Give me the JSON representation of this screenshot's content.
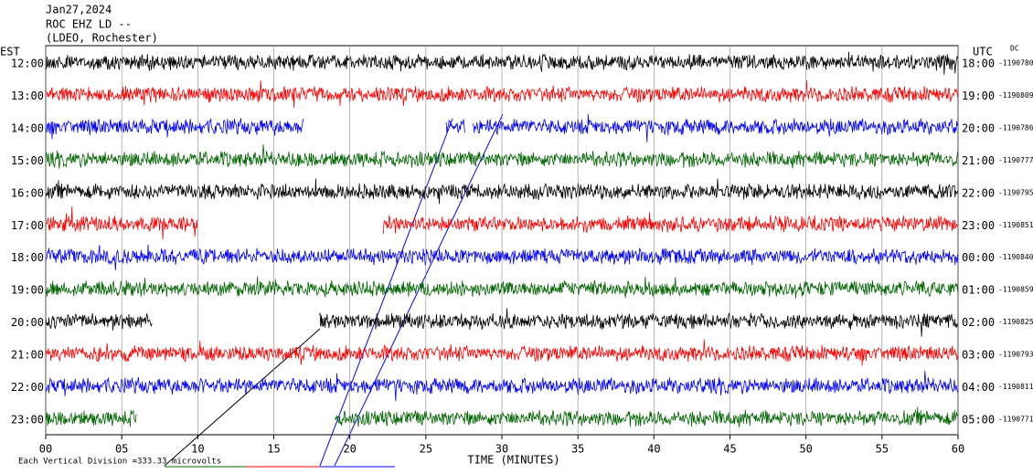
{
  "header": {
    "date": "Jan27,2024",
    "station": "ROC EHZ LD --",
    "network": "(LDEO, Rochester)"
  },
  "left_axis_title": "EST",
  "right_axis_title": "UTC",
  "dc_title": "DC",
  "x_axis_title": "TIME (MINUTES)",
  "scale_note": "Each Vertical Division =",
  "scale_value": "333.33 microvolts",
  "xlim": [
    0,
    60
  ],
  "xticks": [
    {
      "value": 0,
      "label": "00"
    },
    {
      "value": 5,
      "label": "05"
    },
    10,
    15,
    20,
    25,
    30,
    35,
    40,
    45,
    50,
    55,
    60
  ],
  "grid": true,
  "rows": [
    {
      "est": "12:00",
      "utc": "18:00",
      "dc": "-1190780",
      "color": "#000000",
      "segments": [
        [
          0,
          60
        ]
      ]
    },
    {
      "est": "13:00",
      "utc": "19:00",
      "dc": "-1190809",
      "color": "#ff0000",
      "segments": [
        [
          0,
          60
        ]
      ]
    },
    {
      "est": "14:00",
      "utc": "20:00",
      "dc": "-1190786",
      "color": "#0000ff",
      "segments": [
        [
          0,
          17
        ],
        [
          26.3,
          27.6
        ],
        [
          28.1,
          60
        ]
      ]
    },
    {
      "est": "15:00",
      "utc": "21:00",
      "dc": "-1190777",
      "color": "#006400",
      "segments": [
        [
          0,
          60
        ]
      ]
    },
    {
      "est": "16:00",
      "utc": "22:00",
      "dc": "-1190795",
      "color": "#000000",
      "segments": [
        [
          0,
          60
        ]
      ]
    },
    {
      "est": "17:00",
      "utc": "23:00",
      "dc": "-1190851",
      "color": "#ff0000",
      "segments": [
        [
          0,
          10
        ],
        [
          22.2,
          60
        ]
      ]
    },
    {
      "est": "18:00",
      "utc": "00:00",
      "dc": "-1190840",
      "color": "#0000ff",
      "segments": [
        [
          0,
          60
        ]
      ]
    },
    {
      "est": "19:00",
      "utc": "01:00",
      "dc": "-1190859",
      "color": "#006400",
      "segments": [
        [
          0,
          60
        ]
      ]
    },
    {
      "est": "20:00",
      "utc": "02:00",
      "dc": "-1190825",
      "color": "#000000",
      "segments": [
        [
          0,
          7
        ],
        [
          18,
          60
        ]
      ]
    },
    {
      "est": "21:00",
      "utc": "03:00",
      "dc": "-1190793",
      "color": "#ff0000",
      "segments": [
        [
          0,
          60
        ]
      ]
    },
    {
      "est": "22:00",
      "utc": "04:00",
      "dc": "-1190811",
      "color": "#0000ff",
      "segments": [
        [
          0,
          60
        ]
      ]
    },
    {
      "est": "23:00",
      "utc": "05:00",
      "dc": "-1190771",
      "color": "#006400",
      "segments": [
        [
          0,
          6
        ],
        [
          19,
          60
        ]
      ]
    }
  ]
}
